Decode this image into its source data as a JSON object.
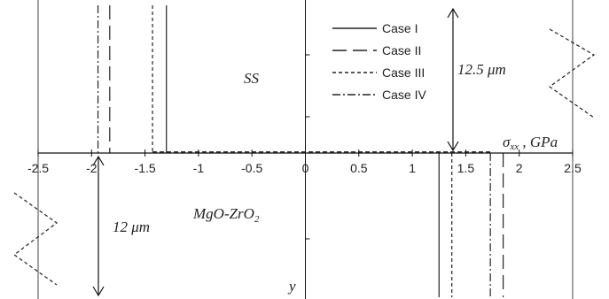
{
  "chart_data": {
    "type": "line",
    "title": "",
    "xlabel": "σxx , GPa",
    "xlabel_main": "σ",
    "xlabel_sub": "xx",
    "xlabel_unit": " , GPa",
    "ylabel": "y",
    "xlim": [
      -2.5,
      2.5
    ],
    "x_ticks": [
      -2.5,
      -2,
      -1.5,
      -1,
      -0.5,
      0,
      0.5,
      1,
      1.5,
      2,
      2.5
    ],
    "x_tick_labels": [
      "-2.5",
      "-2",
      "-1.5",
      "-1",
      "-0.5",
      "0",
      "0.5",
      "1",
      "1.5",
      "2",
      "2.5"
    ],
    "layers": {
      "top": {
        "name": "SS",
        "thickness_label": "12.5 μm"
      },
      "bottom": {
        "name": "MgO-ZrO",
        "name_sub": "2",
        "thickness_label": "12 μm"
      }
    },
    "series": [
      {
        "name": "Case I",
        "style": "solid",
        "x_top": -1.3,
        "x_bottom": 1.25
      },
      {
        "name": "Case II",
        "style": "long-dash",
        "x_top": -1.83,
        "x_bottom": 1.85
      },
      {
        "name": "Case III",
        "style": "short-dash",
        "x_top": -1.43,
        "x_bottom": 1.37
      },
      {
        "name": "Case IV",
        "style": "dash-dot",
        "x_top": -1.94,
        "x_bottom": 1.73
      }
    ],
    "legend_position": "top-right",
    "grid": false
  }
}
